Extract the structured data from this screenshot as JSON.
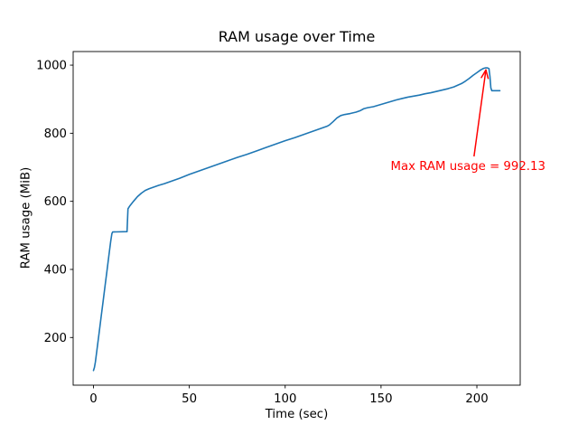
{
  "chart_data": {
    "type": "line",
    "title": "RAM usage over Time",
    "xlabel": "Time (sec)",
    "ylabel": "RAM usage (MiB)",
    "xlim": [
      -10.6,
      222.6
    ],
    "ylim": [
      60,
      1040
    ],
    "xticks": [
      0,
      50,
      100,
      150,
      200
    ],
    "yticks": [
      200,
      400,
      600,
      800,
      1000
    ],
    "grid": false,
    "legend": false,
    "line_color": "#1f77b4",
    "axis_color": "#000000",
    "background_color": "#ffffff",
    "points": [
      [
        0,
        103
      ],
      [
        0.5,
        112
      ],
      [
        1,
        128
      ],
      [
        2,
        172
      ],
      [
        3,
        216
      ],
      [
        4,
        261
      ],
      [
        5,
        305
      ],
      [
        6,
        350
      ],
      [
        7,
        394
      ],
      [
        8,
        439
      ],
      [
        9,
        483
      ],
      [
        9.6,
        505
      ],
      [
        10,
        510
      ],
      [
        17.5,
        511
      ],
      [
        18,
        578
      ],
      [
        19,
        587
      ],
      [
        21,
        601
      ],
      [
        23,
        614
      ],
      [
        25,
        624
      ],
      [
        27,
        632
      ],
      [
        29,
        637
      ],
      [
        31,
        641
      ],
      [
        34,
        647
      ],
      [
        37,
        652
      ],
      [
        40,
        658
      ],
      [
        45,
        668
      ],
      [
        50,
        679
      ],
      [
        55,
        689
      ],
      [
        60,
        699
      ],
      [
        65,
        709
      ],
      [
        70,
        719
      ],
      [
        75,
        729
      ],
      [
        80,
        738
      ],
      [
        85,
        748
      ],
      [
        90,
        758
      ],
      [
        95,
        768
      ],
      [
        100,
        778
      ],
      [
        105,
        787
      ],
      [
        110,
        797
      ],
      [
        115,
        807
      ],
      [
        120,
        817
      ],
      [
        122,
        821
      ],
      [
        123,
        824
      ],
      [
        125,
        834
      ],
      [
        127,
        845
      ],
      [
        129,
        852
      ],
      [
        131,
        855
      ],
      [
        134,
        858
      ],
      [
        137,
        862
      ],
      [
        139,
        866
      ],
      [
        141,
        872
      ],
      [
        143,
        875
      ],
      [
        146,
        878
      ],
      [
        149,
        883
      ],
      [
        152,
        888
      ],
      [
        155,
        893
      ],
      [
        158,
        898
      ],
      [
        161,
        902
      ],
      [
        164,
        906
      ],
      [
        167,
        909
      ],
      [
        170,
        912
      ],
      [
        173,
        916
      ],
      [
        176,
        919
      ],
      [
        179,
        923
      ],
      [
        182,
        927
      ],
      [
        185,
        931
      ],
      [
        188,
        936
      ],
      [
        190,
        941
      ],
      [
        192,
        946
      ],
      [
        194,
        953
      ],
      [
        196,
        961
      ],
      [
        198,
        970
      ],
      [
        200,
        978
      ],
      [
        202,
        986
      ],
      [
        203.5,
        990.5
      ],
      [
        204.6,
        992.13
      ],
      [
        205.5,
        992
      ],
      [
        206.3,
        990
      ],
      [
        206.8,
        968
      ],
      [
        207.3,
        933
      ],
      [
        207.8,
        925
      ],
      [
        209,
        925
      ],
      [
        212,
        925
      ]
    ],
    "annotation": {
      "text": "Max RAM usage = 992.13",
      "max_value": 992.13,
      "color": "#ff0000",
      "text_pos": [
        155,
        721
      ],
      "arrow_tail": [
        198.5,
        732
      ],
      "arrow_tip": [
        204.7,
        986
      ]
    }
  }
}
